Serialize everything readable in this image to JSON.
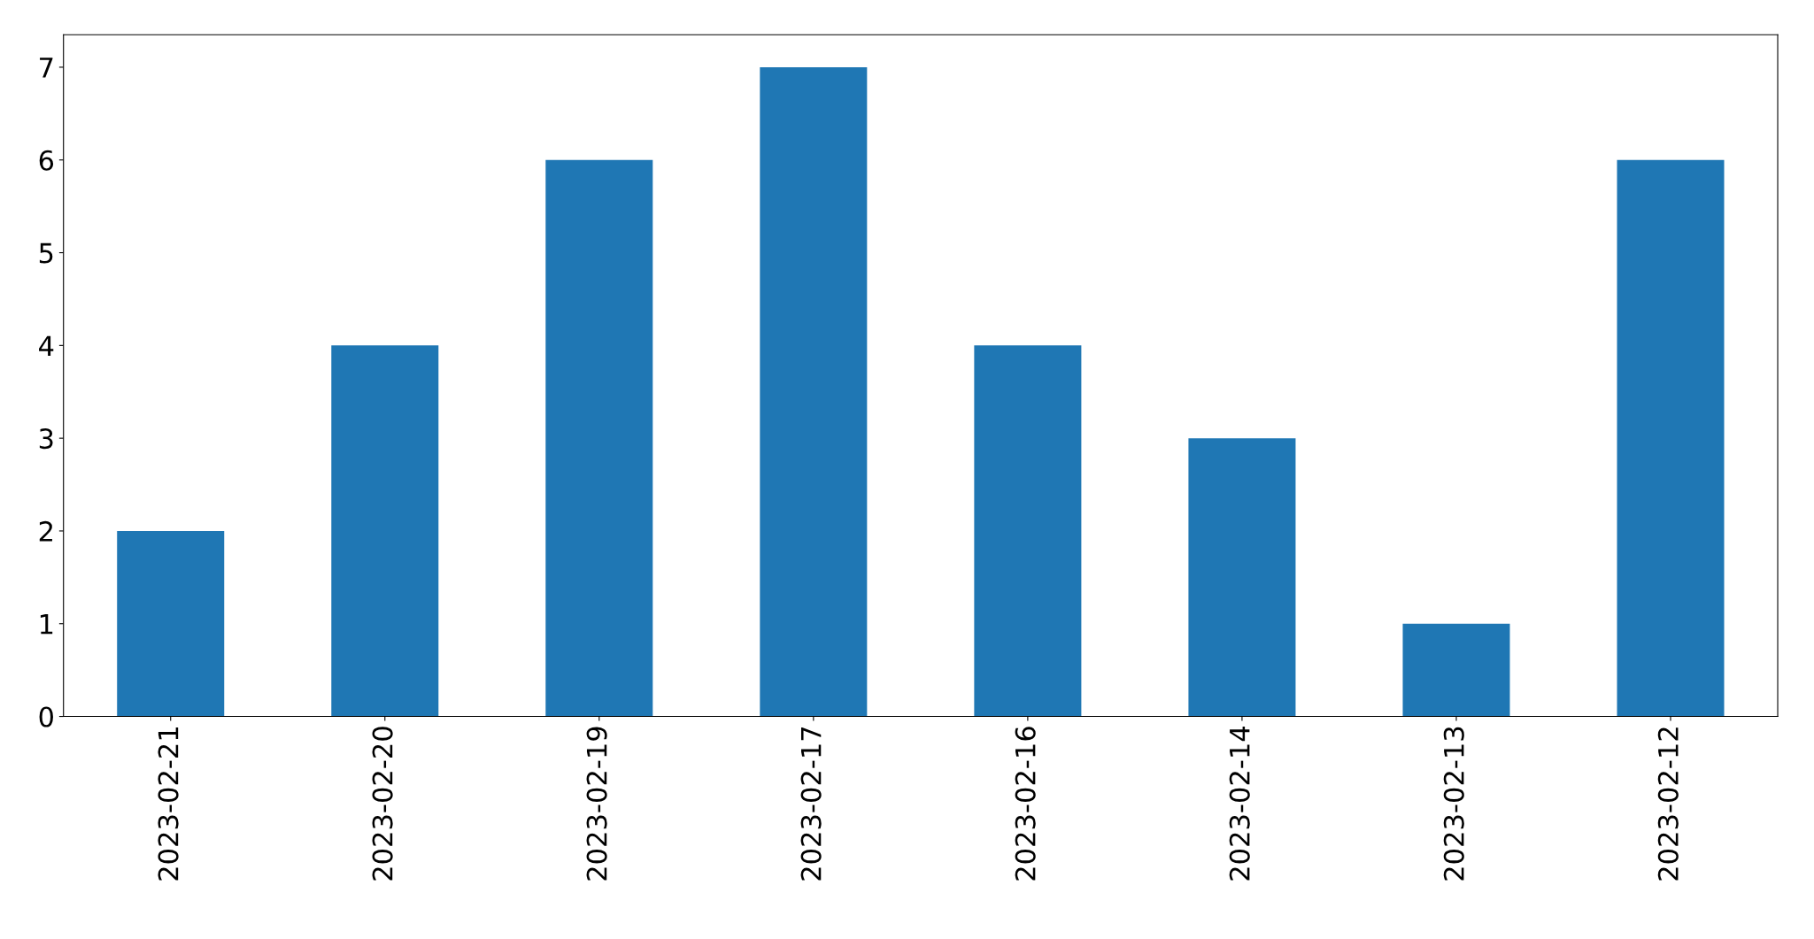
{
  "chart_data": {
    "type": "bar",
    "categories": [
      "2023-02-21",
      "2023-02-20",
      "2023-02-19",
      "2023-02-17",
      "2023-02-16",
      "2023-02-14",
      "2023-02-13",
      "2023-02-12"
    ],
    "values": [
      2,
      4,
      6,
      7,
      4,
      3,
      1,
      6
    ],
    "color": "#1f77b4",
    "ylim": [
      0,
      7.35
    ],
    "yticks": [
      0,
      1,
      2,
      3,
      4,
      5,
      6,
      7
    ],
    "grid": false,
    "legend": false
  }
}
